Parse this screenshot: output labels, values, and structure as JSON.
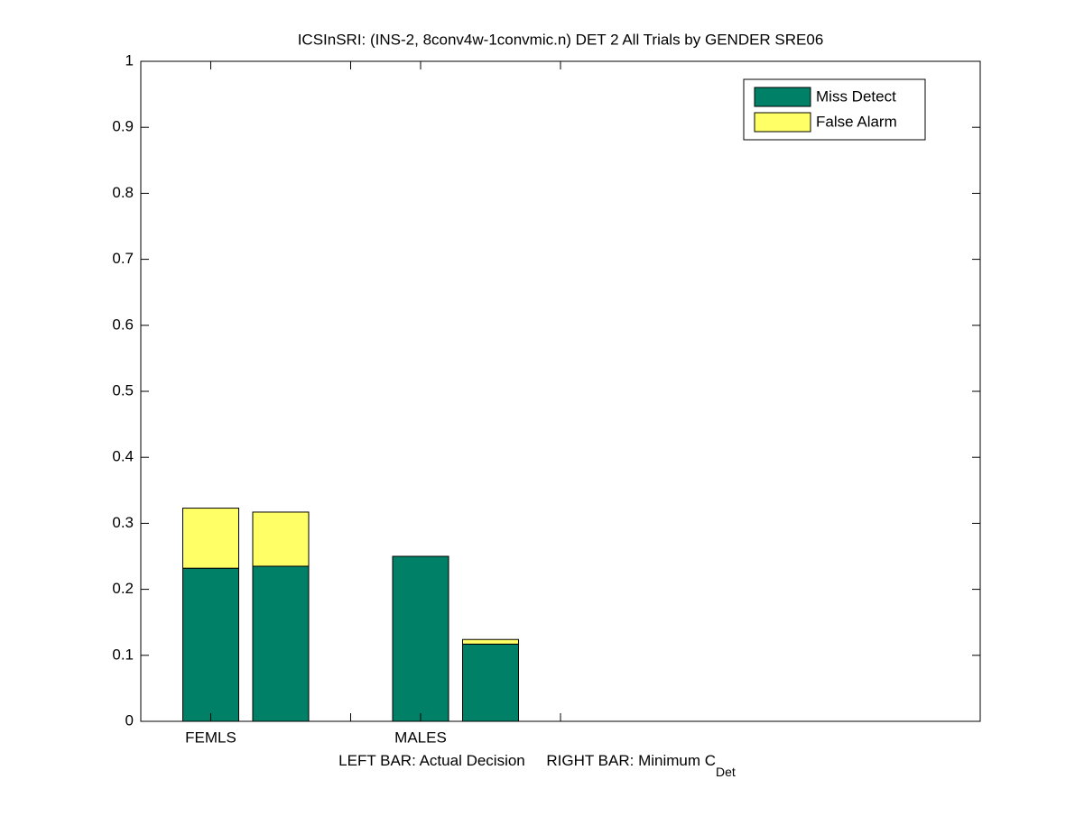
{
  "chart_data": {
    "type": "stacked-bar",
    "title": "ICSInSRI: (INS-2, 8conv4w-1convmic.n) DET 2 All Trials by GENDER SRE06",
    "xlabel": "LEFT BAR: Actual Decision     RIGHT BAR: Minimum C",
    "xlabel_subscript": "Det",
    "x": [
      1,
      2,
      4,
      5
    ],
    "series": [
      {
        "name": "Miss Detect",
        "color": "#008066",
        "values": [
          0.232,
          0.235,
          0.25,
          0.117
        ]
      },
      {
        "name": "False Alarm",
        "color": "#ffff66",
        "values": [
          0.091,
          0.082,
          0,
          0.007
        ]
      }
    ],
    "xlim": [
      0,
      12
    ],
    "xticks": [
      {
        "value": 1,
        "label": "FEMLS"
      },
      {
        "value": 3,
        "label": null
      },
      {
        "value": 4,
        "label": "MALES"
      },
      {
        "value": 6,
        "label": null
      }
    ],
    "ylim": [
      0,
      1
    ],
    "yticks": [
      0,
      0.1,
      0.2,
      0.3,
      0.4,
      0.5,
      0.6,
      0.7,
      0.8,
      0.9,
      1
    ],
    "bar_width": 0.8,
    "grid": false,
    "legend": "top-right"
  }
}
